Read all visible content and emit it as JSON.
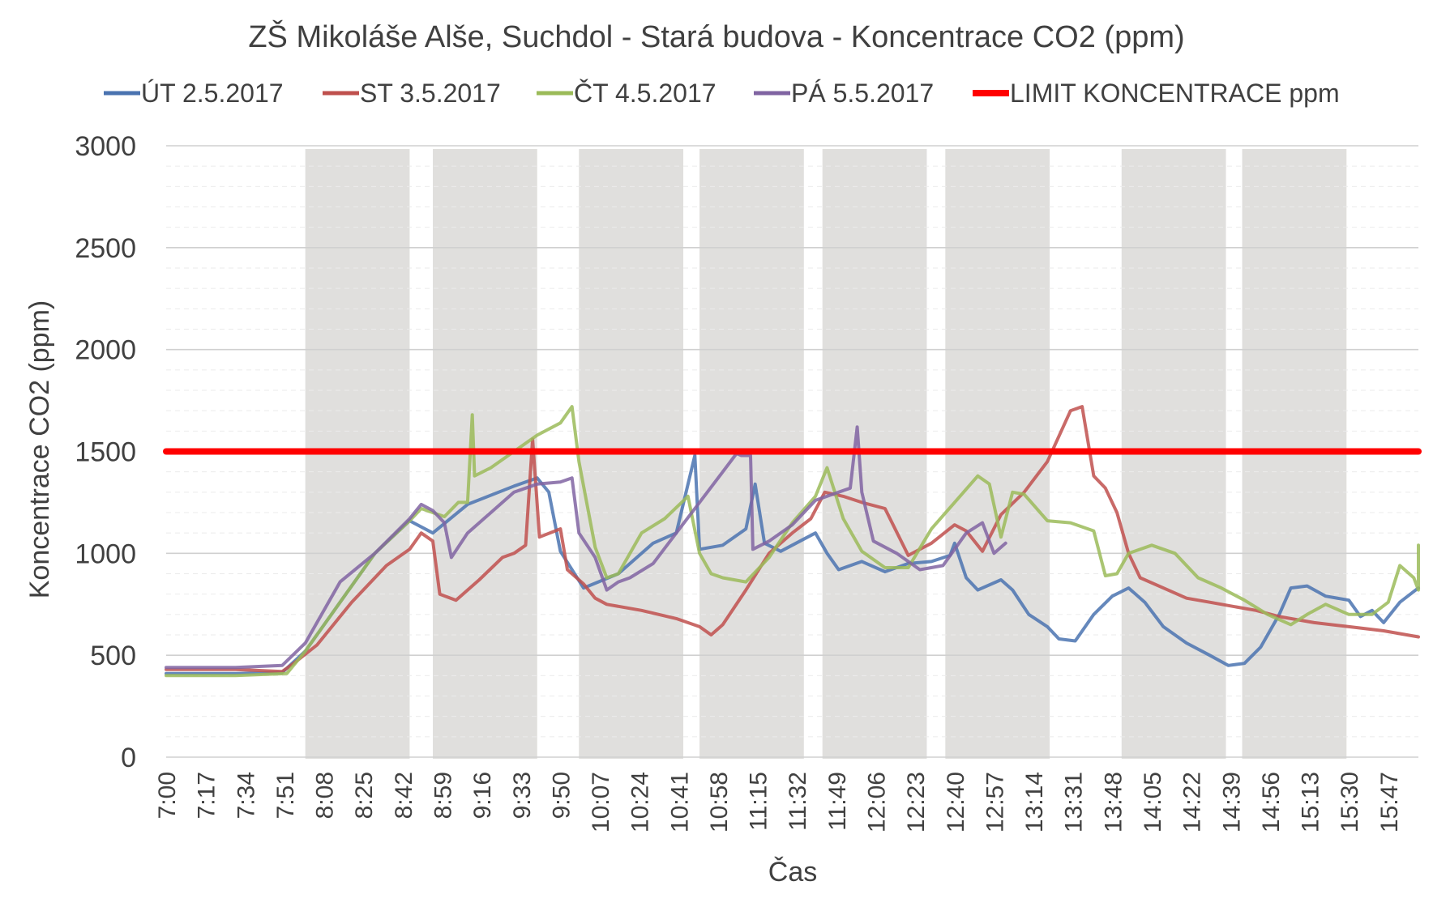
{
  "chart_data": {
    "type": "line",
    "title": "ZŠ Mikoláše Alše, Suchdol - Stará budova - Koncentrace CO2 (ppm)",
    "xlabel": "Čas",
    "ylabel": "Koncentrace CO2 (ppm)",
    "ylim": [
      0,
      3000
    ],
    "yticks": [
      0,
      500,
      1000,
      1500,
      2000,
      2500,
      3000
    ],
    "x_range": [
      "7:00",
      "16:00"
    ],
    "x_ticks": [
      "7:00",
      "7:17",
      "7:34",
      "7:51",
      "8:08",
      "8:25",
      "8:42",
      "8:59",
      "9:16",
      "9:33",
      "9:50",
      "10:07",
      "10:24",
      "10:41",
      "10:58",
      "11:15",
      "11:32",
      "11:49",
      "12:06",
      "12:23",
      "12:40",
      "12:57",
      "13:14",
      "13:31",
      "13:48",
      "14:05",
      "14:22",
      "14:39",
      "14:56",
      "15:13",
      "15:30",
      "15:47"
    ],
    "grid": true,
    "minor_grid": true,
    "legend": "top",
    "shaded_periods": [
      [
        "8:00",
        "8:45"
      ],
      [
        "8:55",
        "9:40"
      ],
      [
        "9:58",
        "10:43"
      ],
      [
        "10:50",
        "11:35"
      ],
      [
        "11:43",
        "12:28"
      ],
      [
        "12:36",
        "13:21"
      ],
      [
        "13:52",
        "14:37"
      ],
      [
        "14:44",
        "15:29"
      ]
    ],
    "series": [
      {
        "name": "ÚT 2.5.2017",
        "color": "#4A73B0",
        "points": [
          [
            "7:00",
            410
          ],
          [
            "7:30",
            410
          ],
          [
            "7:50",
            415
          ],
          [
            "8:00",
            520
          ],
          [
            "8:15",
            760
          ],
          [
            "8:30",
            1000
          ],
          [
            "8:45",
            1160
          ],
          [
            "8:55",
            1100
          ],
          [
            "9:10",
            1240
          ],
          [
            "9:30",
            1330
          ],
          [
            "9:40",
            1370
          ],
          [
            "9:45",
            1300
          ],
          [
            "9:50",
            1010
          ],
          [
            "10:00",
            830
          ],
          [
            "10:15",
            900
          ],
          [
            "10:30",
            1050
          ],
          [
            "10:40",
            1100
          ],
          [
            "10:48",
            1480
          ],
          [
            "10:50",
            1020
          ],
          [
            "11:00",
            1040
          ],
          [
            "11:10",
            1120
          ],
          [
            "11:14",
            1340
          ],
          [
            "11:18",
            1050
          ],
          [
            "11:25",
            1010
          ],
          [
            "11:35",
            1070
          ],
          [
            "11:40",
            1100
          ],
          [
            "11:45",
            1000
          ],
          [
            "11:50",
            920
          ],
          [
            "12:00",
            960
          ],
          [
            "12:10",
            910
          ],
          [
            "12:20",
            950
          ],
          [
            "12:30",
            960
          ],
          [
            "12:38",
            990
          ],
          [
            "12:40",
            1050
          ],
          [
            "12:45",
            880
          ],
          [
            "12:50",
            820
          ],
          [
            "13:00",
            870
          ],
          [
            "13:05",
            820
          ],
          [
            "13:12",
            700
          ],
          [
            "13:20",
            640
          ],
          [
            "13:25",
            580
          ],
          [
            "13:32",
            570
          ],
          [
            "13:40",
            700
          ],
          [
            "13:48",
            790
          ],
          [
            "13:55",
            830
          ],
          [
            "14:02",
            760
          ],
          [
            "14:10",
            640
          ],
          [
            "14:20",
            560
          ],
          [
            "14:30",
            500
          ],
          [
            "14:38",
            450
          ],
          [
            "14:45",
            460
          ],
          [
            "14:52",
            540
          ],
          [
            "15:00",
            700
          ],
          [
            "15:05",
            830
          ],
          [
            "15:12",
            840
          ],
          [
            "15:20",
            790
          ],
          [
            "15:30",
            770
          ],
          [
            "15:35",
            690
          ],
          [
            "15:40",
            720
          ],
          [
            "15:45",
            660
          ],
          [
            "15:52",
            760
          ],
          [
            "16:00",
            830
          ]
        ]
      },
      {
        "name": "ST 3.5.2017",
        "color": "#BF504D",
        "points": [
          [
            "7:00",
            430
          ],
          [
            "7:30",
            430
          ],
          [
            "7:50",
            420
          ],
          [
            "7:55",
            460
          ],
          [
            "8:05",
            550
          ],
          [
            "8:20",
            760
          ],
          [
            "8:35",
            940
          ],
          [
            "8:45",
            1020
          ],
          [
            "8:50",
            1100
          ],
          [
            "8:55",
            1060
          ],
          [
            "8:58",
            800
          ],
          [
            "9:05",
            770
          ],
          [
            "9:15",
            870
          ],
          [
            "9:25",
            980
          ],
          [
            "9:30",
            1000
          ],
          [
            "9:35",
            1040
          ],
          [
            "9:38",
            1560
          ],
          [
            "9:41",
            1080
          ],
          [
            "9:50",
            1120
          ],
          [
            "9:53",
            920
          ],
          [
            "10:00",
            850
          ],
          [
            "10:05",
            780
          ],
          [
            "10:10",
            750
          ],
          [
            "10:25",
            720
          ],
          [
            "10:40",
            680
          ],
          [
            "10:50",
            640
          ],
          [
            "10:55",
            600
          ],
          [
            "11:00",
            650
          ],
          [
            "11:10",
            820
          ],
          [
            "11:20",
            1000
          ],
          [
            "11:30",
            1100
          ],
          [
            "11:38",
            1170
          ],
          [
            "11:44",
            1300
          ],
          [
            "11:52",
            1280
          ],
          [
            "12:00",
            1250
          ],
          [
            "12:10",
            1220
          ],
          [
            "12:20",
            990
          ],
          [
            "12:30",
            1050
          ],
          [
            "12:40",
            1140
          ],
          [
            "12:45",
            1110
          ],
          [
            "12:52",
            1010
          ],
          [
            "13:00",
            1190
          ],
          [
            "13:10",
            1300
          ],
          [
            "13:20",
            1450
          ],
          [
            "13:30",
            1700
          ],
          [
            "13:35",
            1720
          ],
          [
            "13:40",
            1380
          ],
          [
            "13:45",
            1320
          ],
          [
            "13:50",
            1200
          ],
          [
            "13:55",
            1000
          ],
          [
            "14:00",
            880
          ],
          [
            "14:10",
            830
          ],
          [
            "14:20",
            780
          ],
          [
            "14:30",
            760
          ],
          [
            "14:40",
            740
          ],
          [
            "14:50",
            720
          ],
          [
            "15:00",
            690
          ],
          [
            "15:15",
            660
          ],
          [
            "15:30",
            640
          ],
          [
            "15:45",
            620
          ],
          [
            "16:00",
            590
          ]
        ]
      },
      {
        "name": "ČT 4.5.2017",
        "color": "#9BBB59",
        "points": [
          [
            "7:00",
            400
          ],
          [
            "7:30",
            400
          ],
          [
            "7:52",
            410
          ],
          [
            "8:00",
            520
          ],
          [
            "8:15",
            760
          ],
          [
            "8:30",
            1000
          ],
          [
            "8:45",
            1160
          ],
          [
            "8:50",
            1220
          ],
          [
            "9:00",
            1180
          ],
          [
            "9:06",
            1250
          ],
          [
            "9:10",
            1250
          ],
          [
            "9:12",
            1680
          ],
          [
            "9:13",
            1380
          ],
          [
            "9:20",
            1420
          ],
          [
            "9:30",
            1500
          ],
          [
            "9:40",
            1580
          ],
          [
            "9:50",
            1640
          ],
          [
            "9:55",
            1720
          ],
          [
            "9:58",
            1450
          ],
          [
            "10:05",
            1030
          ],
          [
            "10:10",
            880
          ],
          [
            "10:15",
            900
          ],
          [
            "10:25",
            1100
          ],
          [
            "10:35",
            1170
          ],
          [
            "10:45",
            1280
          ],
          [
            "10:50",
            1000
          ],
          [
            "10:55",
            900
          ],
          [
            "11:00",
            880
          ],
          [
            "11:10",
            860
          ],
          [
            "11:20",
            980
          ],
          [
            "11:30",
            1150
          ],
          [
            "11:40",
            1280
          ],
          [
            "11:45",
            1420
          ],
          [
            "11:52",
            1170
          ],
          [
            "12:00",
            1010
          ],
          [
            "12:10",
            930
          ],
          [
            "12:20",
            930
          ],
          [
            "12:30",
            1120
          ],
          [
            "12:40",
            1250
          ],
          [
            "12:50",
            1380
          ],
          [
            "12:55",
            1340
          ],
          [
            "13:00",
            1080
          ],
          [
            "13:05",
            1300
          ],
          [
            "13:10",
            1290
          ],
          [
            "13:20",
            1160
          ],
          [
            "13:30",
            1150
          ],
          [
            "13:40",
            1110
          ],
          [
            "13:45",
            890
          ],
          [
            "13:50",
            900
          ],
          [
            "13:55",
            1000
          ],
          [
            "14:05",
            1040
          ],
          [
            "14:15",
            1000
          ],
          [
            "14:25",
            880
          ],
          [
            "14:35",
            830
          ],
          [
            "14:45",
            770
          ],
          [
            "14:55",
            700
          ],
          [
            "15:05",
            650
          ],
          [
            "15:12",
            700
          ],
          [
            "15:20",
            750
          ],
          [
            "15:30",
            700
          ],
          [
            "15:40",
            700
          ],
          [
            "15:47",
            760
          ],
          [
            "15:52",
            940
          ],
          [
            "15:58",
            880
          ],
          [
            "16:05",
            820
          ],
          [
            "16:10",
            920
          ],
          [
            "16:20",
            1040
          ]
        ]
      },
      {
        "name": "PÁ 5.5.2017",
        "color": "#8064A2",
        "points": [
          [
            "7:00",
            440
          ],
          [
            "7:30",
            440
          ],
          [
            "7:50",
            450
          ],
          [
            "8:00",
            560
          ],
          [
            "8:15",
            860
          ],
          [
            "8:30",
            1000
          ],
          [
            "8:45",
            1170
          ],
          [
            "8:50",
            1240
          ],
          [
            "8:55",
            1210
          ],
          [
            "9:00",
            1150
          ],
          [
            "9:03",
            980
          ],
          [
            "9:10",
            1100
          ],
          [
            "9:20",
            1200
          ],
          [
            "9:30",
            1300
          ],
          [
            "9:40",
            1340
          ],
          [
            "9:50",
            1350
          ],
          [
            "9:55",
            1370
          ],
          [
            "9:58",
            1100
          ],
          [
            "10:05",
            980
          ],
          [
            "10:10",
            820
          ],
          [
            "10:15",
            860
          ],
          [
            "10:20",
            880
          ],
          [
            "10:30",
            950
          ],
          [
            "10:40",
            1100
          ],
          [
            "10:50",
            1250
          ],
          [
            "11:00",
            1400
          ],
          [
            "11:06",
            1490
          ],
          [
            "11:08",
            1480
          ],
          [
            "11:12",
            1480
          ],
          [
            "11:13",
            1020
          ],
          [
            "11:20",
            1060
          ],
          [
            "11:30",
            1140
          ],
          [
            "11:40",
            1260
          ],
          [
            "11:50",
            1300
          ],
          [
            "11:55",
            1320
          ],
          [
            "11:58",
            1620
          ],
          [
            "12:00",
            1300
          ],
          [
            "12:05",
            1060
          ],
          [
            "12:15",
            1000
          ],
          [
            "12:25",
            920
          ],
          [
            "12:35",
            940
          ],
          [
            "12:45",
            1100
          ],
          [
            "12:52",
            1150
          ],
          [
            "12:57",
            1000
          ],
          [
            "13:02",
            1050
          ]
        ]
      },
      {
        "name": "LIMIT KONCENTRACE ppm",
        "color": "#FF0000",
        "points": [
          [
            "7:00",
            1500
          ],
          [
            "16:20",
            1500
          ]
        ]
      }
    ]
  }
}
